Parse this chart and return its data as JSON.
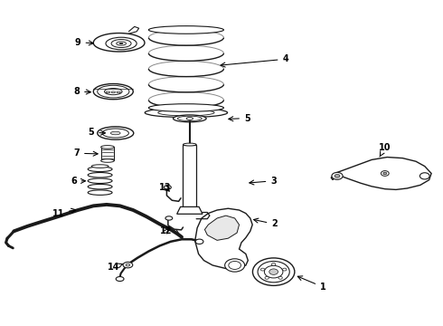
{
  "background_color": "#ffffff",
  "line_color": "#1a1a1a",
  "fig_width": 4.9,
  "fig_height": 3.6,
  "dpi": 100,
  "labels": {
    "1": [
      0.735,
      0.115,
      0.7,
      0.135
    ],
    "2": [
      0.62,
      0.31,
      0.575,
      0.33
    ],
    "3": [
      0.62,
      0.445,
      0.555,
      0.435
    ],
    "4": [
      0.65,
      0.82,
      0.59,
      0.8
    ],
    "5a": [
      0.555,
      0.64,
      0.505,
      0.635
    ],
    "5b": [
      0.23,
      0.595,
      0.275,
      0.59
    ],
    "6": [
      0.17,
      0.44,
      0.215,
      0.445
    ],
    "7": [
      0.175,
      0.53,
      0.215,
      0.528
    ],
    "8": [
      0.175,
      0.72,
      0.22,
      0.718
    ],
    "9": [
      0.175,
      0.87,
      0.215,
      0.865
    ],
    "10": [
      0.87,
      0.545,
      0.855,
      0.51
    ],
    "11": [
      0.135,
      0.345,
      0.185,
      0.36
    ],
    "12": [
      0.4,
      0.285,
      0.42,
      0.31
    ],
    "13": [
      0.38,
      0.42,
      0.395,
      0.4
    ],
    "14": [
      0.265,
      0.175,
      0.295,
      0.19
    ]
  }
}
